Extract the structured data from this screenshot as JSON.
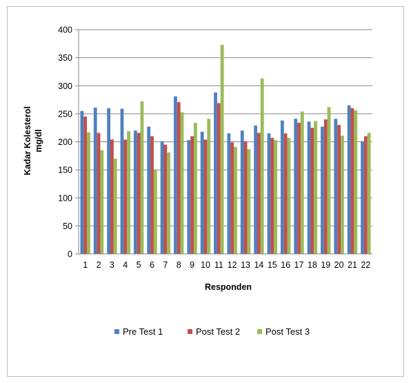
{
  "chart_data": {
    "type": "bar",
    "xlabel": "Responden",
    "ylabel_line1": "Kadar Kolesterol",
    "ylabel_line2": "mg/dl",
    "ylim": [
      0,
      400
    ],
    "yticks": [
      0,
      50,
      100,
      150,
      200,
      250,
      300,
      350,
      400
    ],
    "grid": true,
    "legend_position": "bottom",
    "categories": [
      "1",
      "2",
      "3",
      "4",
      "5",
      "6",
      "7",
      "8",
      "9",
      "10",
      "11",
      "12",
      "13",
      "14",
      "15",
      "16",
      "17",
      "18",
      "19",
      "20",
      "21",
      "22"
    ],
    "series": [
      {
        "name": "Pre Test 1",
        "color": "#4f81bd",
        "values": [
          255,
          261,
          260,
          259,
          220,
          227,
          201,
          281,
          203,
          218,
          288,
          215,
          220,
          229,
          215,
          238,
          241,
          236,
          227,
          241,
          265,
          201
        ]
      },
      {
        "name": "Post Test 2",
        "color": "#c0504d",
        "values": [
          245,
          216,
          204,
          204,
          216,
          210,
          195,
          271,
          210,
          204,
          269,
          199,
          201,
          216,
          207,
          215,
          234,
          225,
          240,
          230,
          260,
          210
        ]
      },
      {
        "name": "Post Test 3",
        "color": "#9bbb59",
        "values": [
          217,
          185,
          170,
          219,
          272,
          150,
          181,
          253,
          234,
          241,
          373,
          191,
          187,
          313,
          203,
          207,
          254,
          237,
          262,
          211,
          256,
          216
        ]
      }
    ]
  }
}
